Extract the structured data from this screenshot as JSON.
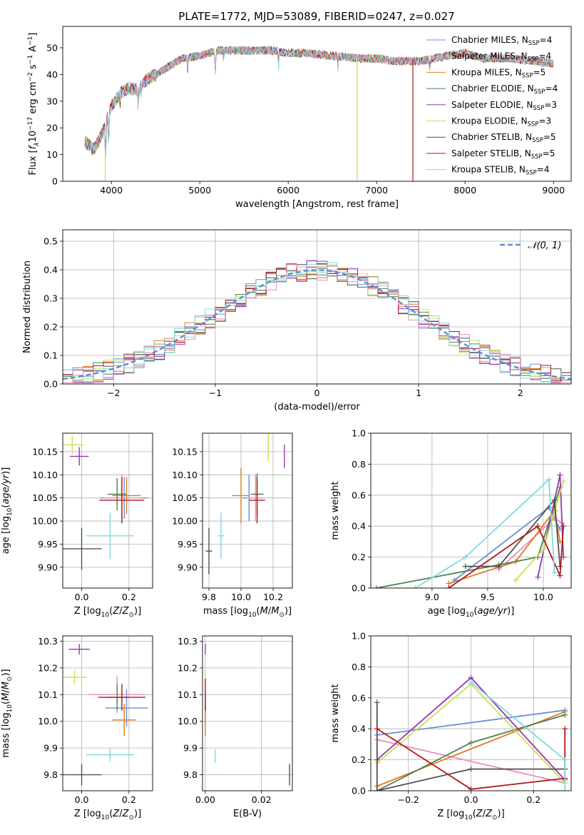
{
  "figure": {
    "title": "PLATE=1772, MJD=53089, FIBERID=0247, z=0.027"
  },
  "colors": {
    "series": [
      "#6a8fd8",
      "#e88fc0",
      "#e07b20",
      "#4f8050",
      "#9a35b5",
      "#c8e050",
      "#505050",
      "#b01818",
      "#80d8e0"
    ],
    "grid": "#b0b0b0",
    "normal": "#5b8ed6"
  },
  "chart_data": [
    {
      "type": "line",
      "name": "spectrum",
      "title": "PLATE=1772, MJD=53089, FIBERID=0247, z=0.027",
      "xlabel": "wavelength [Angstrom, rest frame]",
      "ylabel": "Flux [f_λ 10^-17 erg cm^-2 s^-1 A^-1]",
      "xlim": [
        3450,
        9200
      ],
      "ylim": [
        0,
        58
      ],
      "xticks": [
        4000,
        5000,
        6000,
        7000,
        8000,
        9000
      ],
      "yticks": [
        0,
        10,
        20,
        30,
        40,
        50
      ],
      "grid": false,
      "legend_position": "top-right",
      "legend": [
        {
          "label": "Chabrier MILES, N",
          "sub": "SSP",
          "suffix": "=4"
        },
        {
          "label": "Salpeter MILES, N",
          "sub": "SSP",
          "suffix": "=4"
        },
        {
          "label": "Kroupa MILES, N",
          "sub": "SSP",
          "suffix": "=5"
        },
        {
          "label": "Chabrier ELODIE, N",
          "sub": "SSP",
          "suffix": "=4"
        },
        {
          "label": "Salpeter ELODIE, N",
          "sub": "SSP",
          "suffix": "=3"
        },
        {
          "label": "Kroupa ELODIE, N",
          "sub": "SSP",
          "suffix": "=3"
        },
        {
          "label": "Chabrier STELIB, N",
          "sub": "SSP",
          "suffix": "=5"
        },
        {
          "label": "Salpeter STELIB, N",
          "sub": "SSP",
          "suffix": "=5"
        },
        {
          "label": "Kroupa STELIB, N",
          "sub": "SSP",
          "suffix": "=4"
        }
      ],
      "continuum": {
        "wavelength": [
          3700,
          3800,
          3900,
          4000,
          4100,
          4200,
          4300,
          4400,
          4600,
          4800,
          5000,
          5200,
          5400,
          5600,
          5800,
          6000,
          6200,
          6500,
          6800,
          7000,
          7200,
          7500,
          7800,
          8000,
          8200,
          8500,
          8800,
          9000
        ],
        "flux": [
          15,
          12,
          18,
          28,
          33,
          35,
          34,
          38,
          42,
          46,
          47,
          49,
          49,
          49,
          49,
          48,
          48,
          47,
          46,
          46,
          45,
          45,
          47,
          48,
          46,
          46,
          45,
          44
        ]
      },
      "dropouts": [
        {
          "wavelength": 3930,
          "series": "Kroupa ELODIE"
        },
        {
          "wavelength": 6780,
          "series": "Kroupa ELODIE"
        },
        {
          "wavelength": 7410,
          "series": "Salpeter STELIB"
        }
      ]
    },
    {
      "type": "histogram",
      "name": "residuals",
      "xlabel": "(data-model)/error",
      "ylabel": "Normed distribution",
      "xlim": [
        -2.5,
        2.5
      ],
      "ylim": [
        0,
        0.54
      ],
      "xticks": [
        -2,
        -1,
        0,
        1,
        2
      ],
      "yticks": [
        0,
        0.1,
        0.2,
        0.3,
        0.4,
        0.5
      ],
      "grid": true,
      "legend": [
        {
          "label": "𝒩(0, 1)",
          "style": "dashed"
        }
      ],
      "legend_position": "top-right",
      "bin_width": 0.1
    },
    {
      "type": "scatter",
      "name": "age-vs-Z",
      "xlabel": "Z [log10(Z/Z⊙)]",
      "ylabel": "age [log10(age/yr)]",
      "xlim": [
        -0.08,
        0.3
      ],
      "ylim": [
        9.855,
        10.19
      ],
      "xticks": [
        0.0,
        0.2
      ],
      "yticks": [
        9.9,
        9.95,
        10.0,
        10.05,
        10.1,
        10.15
      ],
      "points": [
        {
          "series": 0,
          "x": 0.18,
          "y": 10.05,
          "xerr": 0.1,
          "yerr": 0.045
        },
        {
          "series": 1,
          "x": 0.17,
          "y": 10.05,
          "xerr": 0.08,
          "yerr": 0.05
        },
        {
          "series": 2,
          "x": 0.19,
          "y": 10.055,
          "xerr": 0.06,
          "yerr": 0.04
        },
        {
          "series": 3,
          "x": 0.15,
          "y": 10.058,
          "xerr": 0.04,
          "yerr": 0.035
        },
        {
          "series": 4,
          "x": -0.01,
          "y": 10.14,
          "xerr": 0.04,
          "yerr": 0.02
        },
        {
          "series": 5,
          "x": -0.04,
          "y": 10.165,
          "xerr": 0.05,
          "yerr": 0.02
        },
        {
          "series": 6,
          "x": 0.0,
          "y": 9.94,
          "xerr": 0.085,
          "yerr": 0.045
        },
        {
          "series": 7,
          "x": 0.17,
          "y": 10.045,
          "xerr": 0.095,
          "yerr": 0.05
        },
        {
          "series": 8,
          "x": 0.12,
          "y": 9.968,
          "xerr": 0.1,
          "yerr": 0.05
        }
      ]
    },
    {
      "type": "scatter",
      "name": "age-vs-mass",
      "xlabel": "mass [log10(M/M⊙)]",
      "ylabel": "",
      "xlim": [
        9.76,
        10.32
      ],
      "ylim": [
        9.855,
        10.19
      ],
      "xticks": [
        9.8,
        10.0,
        10.2
      ],
      "yticks": [
        9.9,
        9.95,
        10.0,
        10.05,
        10.1,
        10.15
      ],
      "points": [
        {
          "series": 0,
          "x": 10.05,
          "y": 10.05,
          "xerr": 0.04,
          "yerr": 0.05
        },
        {
          "series": 1,
          "x": 10.09,
          "y": 10.05,
          "xerr": 0.05,
          "yerr": 0.05
        },
        {
          "series": 2,
          "x": 10.0,
          "y": 10.055,
          "xerr": 0.055,
          "yerr": 0.06
        },
        {
          "series": 3,
          "x": 10.1,
          "y": 10.058,
          "xerr": 0.04,
          "yerr": 0.045
        },
        {
          "series": 4,
          "x": 10.27,
          "y": 10.14,
          "xerr": 0.0,
          "yerr": 0.025
        },
        {
          "series": 5,
          "x": 10.17,
          "y": 10.165,
          "xerr": 0.0,
          "yerr": 0.035
        },
        {
          "series": 6,
          "x": 9.8,
          "y": 9.935,
          "xerr": 0.02,
          "yerr": 0.05
        },
        {
          "series": 7,
          "x": 10.1,
          "y": 10.045,
          "xerr": 0.05,
          "yerr": 0.05
        },
        {
          "series": 8,
          "x": 9.875,
          "y": 9.968,
          "xerr": 0.02,
          "yerr": 0.05
        }
      ]
    },
    {
      "type": "line",
      "name": "mass-weight-vs-age",
      "xlabel": "age [log10(age/yr)]",
      "ylabel": "mass weight",
      "xlim": [
        8.45,
        10.25
      ],
      "ylim": [
        0,
        1
      ],
      "xticks": [
        9.0,
        9.5,
        10.0
      ],
      "yticks": [
        0,
        0.2,
        0.4,
        0.6,
        0.8,
        1.0
      ],
      "grid": true,
      "series": [
        {
          "series": 0,
          "x": [
            9.2,
            10.05,
            10.15
          ],
          "y": [
            0.05,
            0.52,
            0.38
          ]
        },
        {
          "series": 1,
          "x": [
            9.6,
            10.1,
            10.17
          ],
          "y": [
            0.12,
            0.45,
            0.42
          ]
        },
        {
          "series": 2,
          "x": [
            9.15,
            9.75,
            10.1,
            10.15
          ],
          "y": [
            0.03,
            0.17,
            0.5,
            0.3
          ]
        },
        {
          "series": 3,
          "x": [
            8.5,
            9.6,
            9.95,
            10.15
          ],
          "y": [
            0.0,
            0.15,
            0.2,
            0.65
          ]
        },
        {
          "series": 4,
          "x": [
            9.95,
            10.15,
            10.18
          ],
          "y": [
            0.07,
            0.73,
            0.2
          ]
        },
        {
          "series": 5,
          "x": [
            9.75,
            10.0,
            10.18
          ],
          "y": [
            0.05,
            0.25,
            0.69
          ]
        },
        {
          "series": 6,
          "x": [
            9.3,
            9.6,
            10.1,
            10.15
          ],
          "y": [
            0.14,
            0.14,
            0.57,
            0.14
          ]
        },
        {
          "series": 7,
          "x": [
            9.15,
            9.95,
            10.15,
            10.18
          ],
          "y": [
            0.0,
            0.4,
            0.08,
            0.4
          ]
        },
        {
          "series": 8,
          "x": [
            8.85,
            9.3,
            10.05,
            10.1
          ],
          "y": [
            0.0,
            0.2,
            0.7,
            0.1
          ]
        }
      ]
    },
    {
      "type": "scatter",
      "name": "mass-vs-Z",
      "xlabel": "Z [log10(Z/Z⊙)]",
      "ylabel": "mass [log10(M/M⊙)]",
      "xlim": [
        -0.08,
        0.3
      ],
      "ylim": [
        9.74,
        10.32
      ],
      "xticks": [
        0.0,
        0.2
      ],
      "yticks": [
        9.8,
        9.9,
        10.0,
        10.1,
        10.2,
        10.3
      ],
      "points": [
        {
          "series": 0,
          "x": 0.19,
          "y": 10.05,
          "xerr": 0.09,
          "yerr": 0.07
        },
        {
          "series": 1,
          "x": 0.15,
          "y": 10.1,
          "xerr": 0.12,
          "yerr": 0.07
        },
        {
          "series": 2,
          "x": 0.18,
          "y": 10.005,
          "xerr": 0.05,
          "yerr": 0.06
        },
        {
          "series": 3,
          "x": 0.15,
          "y": 10.09,
          "xerr": 0.04,
          "yerr": 0.05
        },
        {
          "series": 4,
          "x": -0.01,
          "y": 10.27,
          "xerr": 0.045,
          "yerr": 0.02
        },
        {
          "series": 5,
          "x": -0.03,
          "y": 10.165,
          "xerr": 0.05,
          "yerr": 0.025
        },
        {
          "series": 6,
          "x": 0.0,
          "y": 9.8,
          "xerr": 0.085,
          "yerr": 0.04
        },
        {
          "series": 7,
          "x": 0.17,
          "y": 10.09,
          "xerr": 0.1,
          "yerr": 0.05
        },
        {
          "series": 8,
          "x": 0.12,
          "y": 9.875,
          "xerr": 0.1,
          "yerr": 0.025
        }
      ]
    },
    {
      "type": "scatter",
      "name": "mass-vs-EBV",
      "xlabel": "E(B-V)",
      "ylabel": "",
      "xlim": [
        -0.001,
        0.031
      ],
      "ylim": [
        9.74,
        10.32
      ],
      "xticks": [
        0.0,
        0.02
      ],
      "yticks": [
        9.8,
        9.9,
        10.0,
        10.1,
        10.2,
        10.3
      ],
      "points": [
        {
          "series": 0,
          "x": 0.0,
          "y": 10.05,
          "xerr": 0,
          "yerr": 0.06
        },
        {
          "series": 2,
          "x": 0.0,
          "y": 10.005,
          "xerr": 0,
          "yerr": 0.06
        },
        {
          "series": 4,
          "x": 0.0,
          "y": 10.27,
          "xerr": 0,
          "yerr": 0.02
        },
        {
          "series": 5,
          "x": 0.0,
          "y": 10.17,
          "xerr": 0,
          "yerr": 0.02
        },
        {
          "series": 7,
          "x": 0.0,
          "y": 10.1,
          "xerr": 0,
          "yerr": 0.06
        },
        {
          "series": 8,
          "x": 0.0035,
          "y": 9.87,
          "xerr": 0,
          "yerr": 0.025
        },
        {
          "series": 6,
          "x": 0.03,
          "y": 9.8,
          "xerr": 0,
          "yerr": 0.04
        }
      ]
    },
    {
      "type": "line",
      "name": "mass-weight-vs-Z",
      "xlabel": "Z [log10(Z/Z⊙)]",
      "ylabel": "mass weight",
      "xlim": [
        -0.32,
        0.32
      ],
      "ylim": [
        0,
        1
      ],
      "xticks": [
        -0.2,
        0.0,
        0.2
      ],
      "yticks": [
        0,
        0.2,
        0.4,
        0.6,
        0.8,
        1.0
      ],
      "grid": true,
      "series": [
        {
          "series": 0,
          "x": [
            -0.3,
            0.3
          ],
          "y": [
            0.36,
            0.52
          ]
        },
        {
          "series": 1,
          "x": [
            -0.3,
            0.3
          ],
          "y": [
            0.33,
            0.05
          ]
        },
        {
          "series": 2,
          "x": [
            -0.3,
            0.3
          ],
          "y": [
            0.03,
            0.51
          ]
        },
        {
          "series": 3,
          "x": [
            -0.3,
            0.0,
            0.3
          ],
          "y": [
            0.0,
            0.31,
            0.49
          ]
        },
        {
          "series": 4,
          "x": [
            -0.3,
            0.0,
            0.3
          ],
          "y": [
            0.2,
            0.73,
            0.07
          ]
        },
        {
          "series": 5,
          "x": [
            -0.3,
            0.0,
            0.3
          ],
          "y": [
            0.18,
            0.69,
            0.05
          ]
        },
        {
          "series": 6,
          "x": [
            -0.3,
            -0.3,
            0.0,
            0.3
          ],
          "y": [
            0.57,
            0.0,
            0.14,
            0.14
          ]
        },
        {
          "series": 7,
          "x": [
            -0.3,
            0.0,
            0.3,
            0.3
          ],
          "y": [
            0.4,
            0.01,
            0.08,
            0.4
          ]
        },
        {
          "series": 8,
          "x": [
            0.0,
            0.3,
            0.3
          ],
          "y": [
            0.7,
            0.2,
            0.0
          ]
        }
      ]
    }
  ]
}
